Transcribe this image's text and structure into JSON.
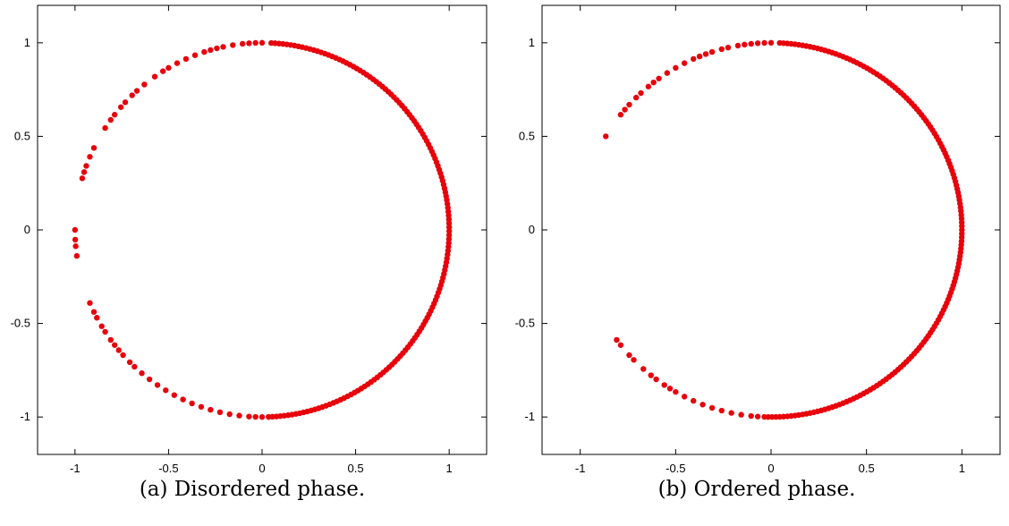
{
  "chart_data": [
    {
      "type": "scatter",
      "caption": "(a) Disordered phase.",
      "xlim": [
        -1.2,
        1.2
      ],
      "ylim": [
        -1.2,
        1.2
      ],
      "xticks": [
        "-1",
        "-0.5",
        "0",
        "0.5",
        "1"
      ],
      "yticks": [
        "-1",
        "-0.5",
        "0",
        "0.5",
        "1"
      ],
      "xtick_values": [
        -1,
        -0.5,
        0,
        0.5,
        1
      ],
      "ytick_values": [
        -1,
        -0.5,
        0,
        0.5,
        1
      ],
      "grid": false,
      "marker_color": "#e8000b",
      "series": [
        {
          "description": "points on unit circle given as angle (degrees) of (cos, sin)",
          "dense_arc_deg": [
            -88,
            88,
            1.2
          ],
          "angles_deg": [
            90,
            92,
            94,
            96,
            99,
            102,
            104,
            106,
            108,
            111,
            114,
            117,
            120,
            122,
            125,
            129,
            132,
            134,
            137,
            139,
            142,
            144,
            147,
            154,
            157,
            160,
            162,
            164,
            180,
            183,
            185,
            188,
            203,
            206,
            208,
            211,
            213,
            216,
            218,
            220,
            222,
            225,
            227,
            230,
            233,
            236,
            239,
            242,
            245,
            248,
            251,
            254,
            257,
            260,
            263,
            266,
            268,
            270,
            272
          ]
        }
      ]
    },
    {
      "type": "scatter",
      "caption": "(b) Ordered phase.",
      "xlim": [
        -1.2,
        1.2
      ],
      "ylim": [
        -1.2,
        1.2
      ],
      "xticks": [
        "-1",
        "-0.5",
        "0",
        "0.5",
        "1"
      ],
      "yticks": [
        "-1",
        "-0.5",
        "0",
        "0.5",
        "1"
      ],
      "xtick_values": [
        -1,
        -0.5,
        0,
        0.5,
        1
      ],
      "ytick_values": [
        -1,
        -0.5,
        0,
        0.5,
        1
      ],
      "grid": false,
      "marker_color": "#e8000b",
      "series": [
        {
          "description": "points on unit circle given as angle (degrees) of (cos, sin)",
          "dense_arc_deg": [
            -92,
            88,
            1.15
          ],
          "angles_deg": [
            90,
            92,
            94,
            96,
            98,
            100,
            103,
            105,
            108,
            110,
            112,
            114,
            117,
            120,
            123,
            126,
            128,
            130,
            133,
            135,
            138,
            140,
            142,
            150,
            216,
            218,
            222,
            224,
            228,
            231,
            233,
            236,
            238,
            240,
            243,
            246,
            249,
            252,
            255,
            258,
            261,
            264,
            266
          ]
        }
      ]
    }
  ]
}
